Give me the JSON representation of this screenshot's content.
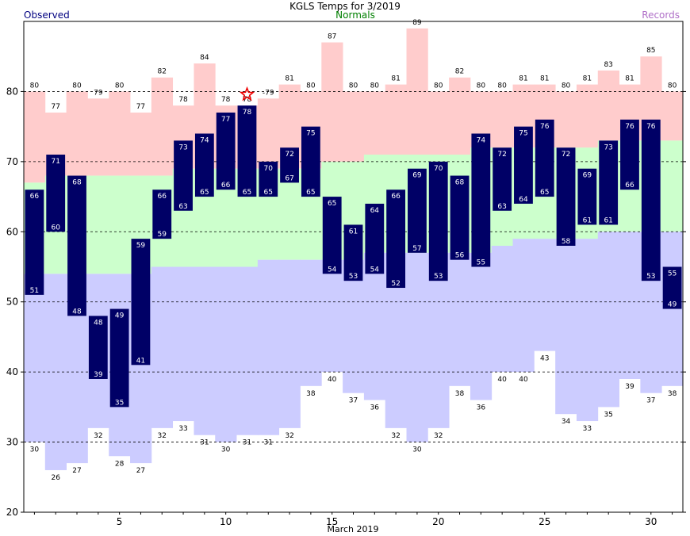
{
  "chart_data": {
    "type": "bar",
    "title": "KGLS Temps for 3/2019",
    "legend": {
      "observed": "Observed",
      "normals": "Normals",
      "records": "Records"
    },
    "xlabel": "March 2019",
    "ylabel": "",
    "xlim": [
      0.5,
      31.5
    ],
    "ylim": [
      20,
      90
    ],
    "yticks": [
      20,
      30,
      40,
      50,
      60,
      70,
      80
    ],
    "xticks": [
      5,
      10,
      15,
      20,
      25,
      30
    ],
    "grid_lines": [
      30,
      40,
      50,
      60,
      70,
      80
    ],
    "days": [
      1,
      2,
      3,
      4,
      5,
      6,
      7,
      8,
      9,
      10,
      11,
      12,
      13,
      14,
      15,
      16,
      17,
      18,
      19,
      20,
      21,
      22,
      23,
      24,
      25,
      26,
      27,
      28,
      29,
      30,
      31
    ],
    "series": [
      {
        "name": "Observed",
        "kind": "high",
        "values": [
          66,
          71,
          68,
          48,
          49,
          59,
          66,
          73,
          74,
          77,
          78,
          70,
          72,
          75,
          65,
          61,
          64,
          66,
          69,
          70,
          68,
          74,
          72,
          75,
          76,
          72,
          69,
          73,
          76,
          76,
          55
        ]
      },
      {
        "name": "Observed",
        "kind": "low",
        "values": [
          51,
          60,
          48,
          39,
          35,
          41,
          59,
          63,
          65,
          66,
          65,
          65,
          67,
          65,
          54,
          53,
          54,
          52,
          57,
          53,
          56,
          55,
          63,
          64,
          65,
          58,
          61,
          61,
          66,
          53,
          49
        ]
      },
      {
        "name": "Records",
        "kind": "record_high",
        "values": [
          80,
          77,
          80,
          79,
          80,
          77,
          82,
          78,
          84,
          78,
          78,
          79,
          81,
          80,
          87,
          80,
          80,
          81,
          89,
          80,
          82,
          80,
          80,
          81,
          81,
          80,
          81,
          83,
          81,
          85,
          80
        ]
      },
      {
        "name": "Records",
        "kind": "record_low",
        "values": [
          30,
          26,
          27,
          32,
          28,
          27,
          32,
          33,
          31,
          30,
          31,
          31,
          32,
          38,
          40,
          37,
          36,
          32,
          30,
          32,
          38,
          36,
          40,
          40,
          43,
          34,
          33,
          35,
          39,
          37,
          38
        ]
      },
      {
        "name": "Normals",
        "kind": "normal_high",
        "values": [
          67,
          68,
          68,
          68,
          68,
          68,
          68,
          69,
          69,
          69,
          69,
          69,
          69,
          69,
          70,
          70,
          71,
          71,
          71,
          71,
          71,
          72,
          72,
          72,
          72,
          72,
          72,
          73,
          73,
          73,
          73
        ]
      },
      {
        "name": "Normals",
        "kind": "normal_low",
        "values": [
          54,
          54,
          54,
          54,
          54,
          54,
          55,
          55,
          55,
          55,
          55,
          56,
          56,
          56,
          56,
          56,
          57,
          57,
          57,
          57,
          57,
          57,
          58,
          59,
          59,
          59,
          59,
          60,
          60,
          60,
          60
        ]
      }
    ],
    "record_marker_day": 11,
    "grid": true,
    "colors": {
      "observed": "#000066",
      "record_band": "#ffcccc",
      "normal_band": "#ccffcc",
      "low_band": "#ccccff",
      "star": "#ee0000",
      "gridline": "#000000"
    }
  }
}
